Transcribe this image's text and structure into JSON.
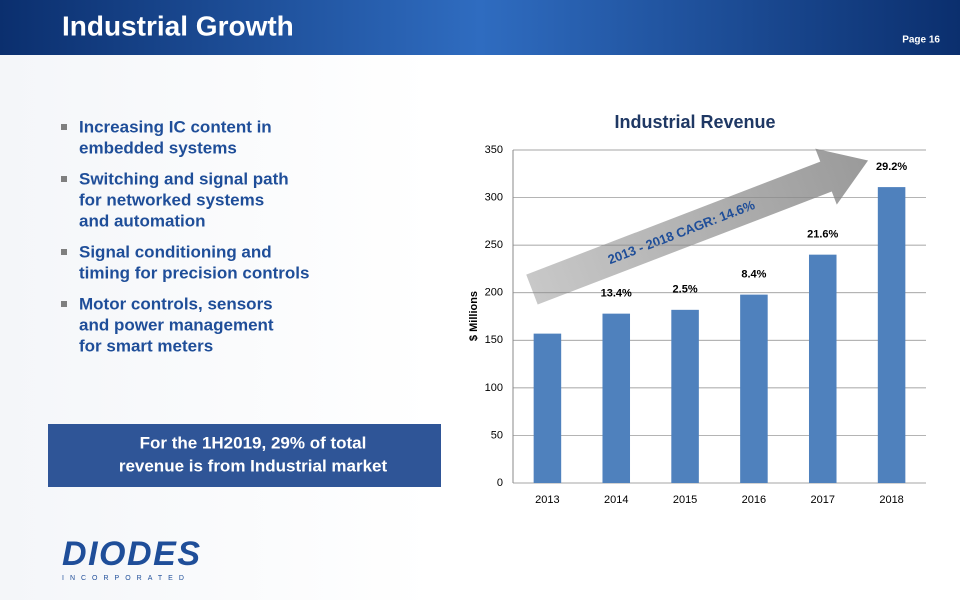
{
  "header": {
    "title": "Industrial Growth",
    "page": "Page 16"
  },
  "bullets": [
    [
      "Increasing IC content in",
      "embedded systems"
    ],
    [
      "Switching and signal path",
      "for networked systems",
      "and automation"
    ],
    [
      "Signal conditioning and",
      "timing for precision controls"
    ],
    [
      "Motor controls, sensors",
      "and power management",
      "for smart meters"
    ]
  ],
  "callout": [
    "For the 1H2019, 29% of total",
    "revenue is from Industrial market"
  ],
  "logo": {
    "name": "DIODES",
    "sub": "INCORPORATED"
  },
  "chart_data": {
    "type": "bar",
    "title": "Industrial Revenue",
    "y_label": "$ Millions",
    "categories": [
      "2013",
      "2014",
      "2015",
      "2016",
      "2017",
      "2018"
    ],
    "values": [
      157,
      178,
      182,
      198,
      240,
      311
    ],
    "annotations": [
      null,
      "13.4%",
      "2.5%",
      "8.4%",
      "21.6%",
      "29.2%"
    ],
    "arrow_label": "2013 - 2018 CAGR: 14.6%",
    "color": "#4f81bd",
    "ylim": [
      0,
      350
    ],
    "yticks": [
      0,
      50,
      100,
      150,
      200,
      250,
      300,
      350
    ],
    "grid": true
  }
}
